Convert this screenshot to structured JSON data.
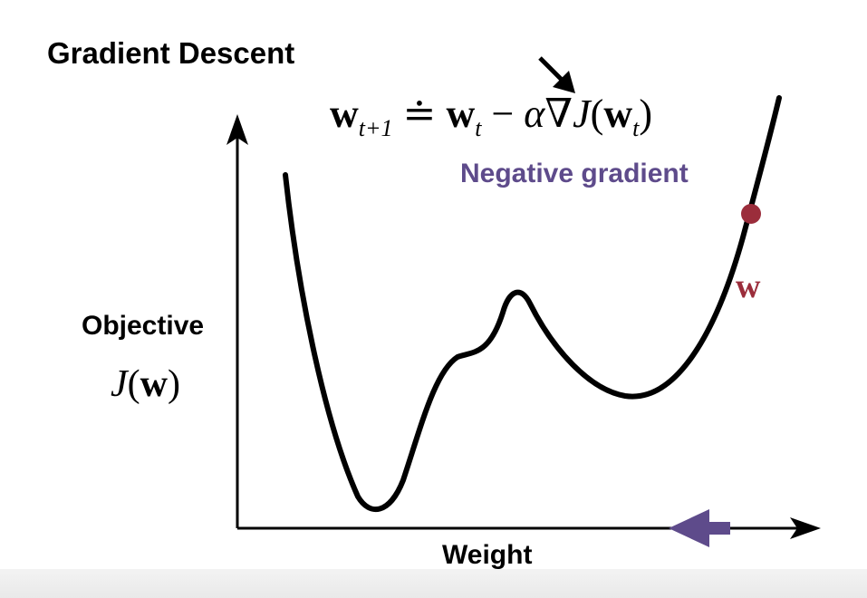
{
  "title": "Gradient Descent",
  "formula": {
    "lhs": "w",
    "lhs_subscript": "t+1",
    "relation": "≐",
    "w": "w",
    "w_subscript": "t",
    "minus": "−",
    "alpha": "α",
    "nabla": "∇",
    "J": "J",
    "open_paren": "(",
    "inner_w": "w",
    "inner_subscript": "t",
    "close_paren": ")"
  },
  "negative_gradient_label": "Negative gradient",
  "y_axis": {
    "label": "Objective",
    "symbol": "J(w)"
  },
  "x_axis": {
    "label": "Weight"
  },
  "point_label": "w",
  "colors": {
    "curve": "#000000",
    "point": "#9b2d3b",
    "gradient_label": "#5e4b8b",
    "direction_arrow": "#5e4b8b"
  },
  "icons": {
    "formula_pointer": "arrow-down-right-icon",
    "direction": "arrow-left-icon"
  }
}
